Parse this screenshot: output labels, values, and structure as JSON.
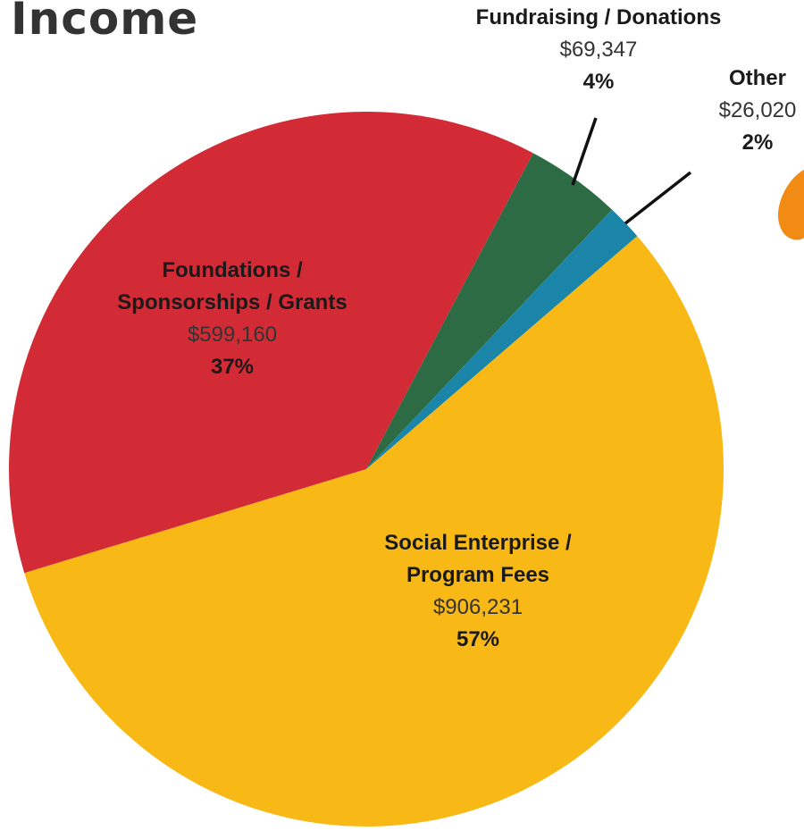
{
  "title": "Income",
  "colors": {
    "social": "#f8b916",
    "foundations": "#d22b35",
    "fundraising": "#2d6b45",
    "other": "#1a85a8",
    "accent_blob": "#f28b14"
  },
  "labels": {
    "social": {
      "name_line1": "Social Enterprise /",
      "name_line2": "Program Fees",
      "amount": "$906,231",
      "percent": "57%"
    },
    "foundations": {
      "name_line1": "Foundations /",
      "name_line2": "Sponsorships / Grants",
      "amount": "$599,160",
      "percent": "37%"
    },
    "fundraising": {
      "name_line1": "Fundraising / Donations",
      "amount": "$69,347",
      "percent": "4%"
    },
    "other": {
      "name_line1": "Other",
      "amount": "$26,020",
      "percent": "2%"
    }
  },
  "chart_data": {
    "type": "pie",
    "title": "Income",
    "slices": [
      {
        "label": "Social Enterprise / Program Fees",
        "value": 906231,
        "percent": 57,
        "color": "#f8b916"
      },
      {
        "label": "Foundations / Sponsorships / Grants",
        "value": 599160,
        "percent": 37,
        "color": "#d22b35"
      },
      {
        "label": "Fundraising / Donations",
        "value": 69347,
        "percent": 4,
        "color": "#2d6b45"
      },
      {
        "label": "Other",
        "value": 26020,
        "percent": 2,
        "color": "#1a85a8"
      }
    ]
  }
}
